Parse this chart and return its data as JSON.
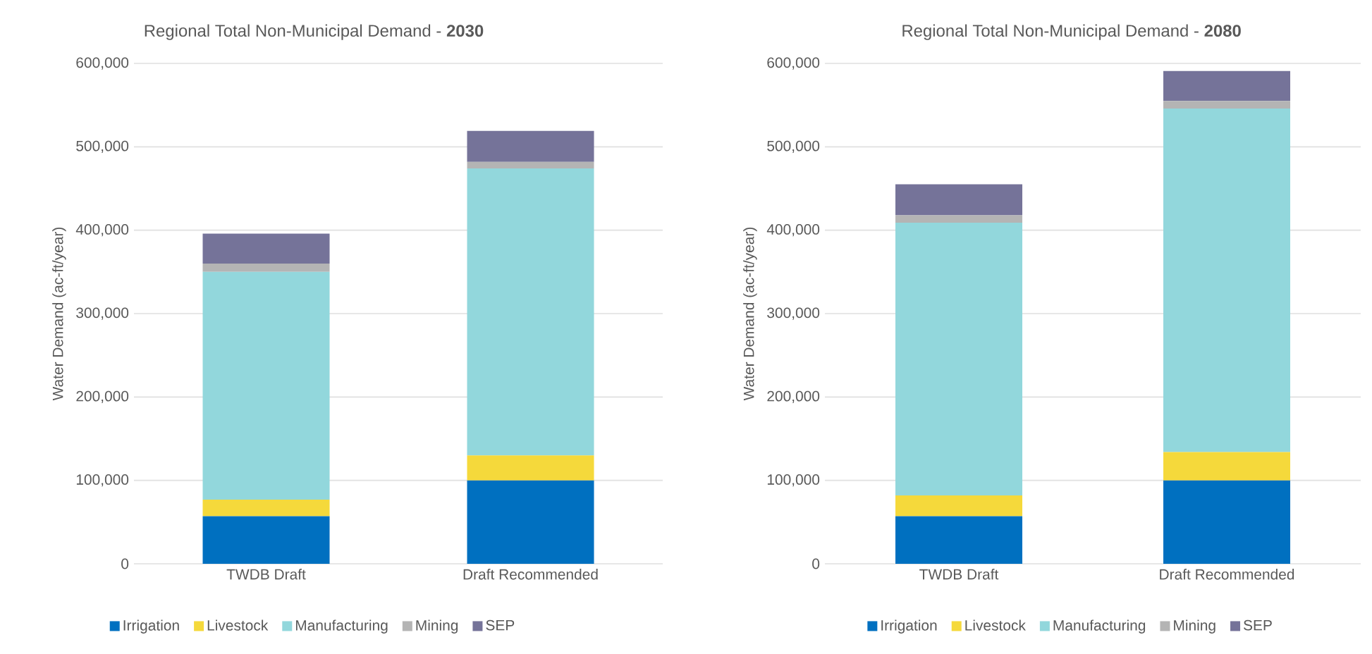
{
  "chart_data": [
    {
      "type": "bar",
      "title": "Regional Total Non-Municipal Demand - **2030**",
      "ylabel": "Water Demand (ac-ft/year)",
      "categories": [
        "TWDB Draft",
        "Draft Recommended"
      ],
      "stacked": true,
      "grid": "y",
      "legend": "bottom",
      "ylim": [
        0,
        600000
      ],
      "yticks": [
        0,
        {
          "value": 100000,
          "label": "100,000"
        },
        {
          "value": 200000,
          "label": "200,000"
        },
        {
          "value": 300000,
          "label": "300,000"
        },
        {
          "value": 400000,
          "label": "400,000"
        },
        {
          "value": 500000,
          "label": "500,000"
        },
        {
          "value": 600000,
          "label": "600,000"
        }
      ],
      "series": [
        {
          "name": "Irrigation",
          "color": "#0070c0",
          "values": [
            57000,
            100000
          ]
        },
        {
          "name": "Livestock",
          "color": "#f5d93b",
          "values": [
            20000,
            30000
          ]
        },
        {
          "name": "Manufacturing",
          "color": "#92d7dc",
          "values": [
            273000,
            344000
          ]
        },
        {
          "name": "Mining",
          "color": "#b4b4b4",
          "values": [
            10000,
            8000
          ]
        },
        {
          "name": "SEP",
          "color": "#757399",
          "values": [
            36000,
            37000
          ]
        }
      ]
    },
    {
      "type": "bar",
      "title": "Regional Total Non-Municipal Demand - **2080**",
      "ylabel": "Water Demand (ac-ft/year)",
      "categories": [
        "TWDB Draft",
        "Draft Recommended"
      ],
      "stacked": true,
      "grid": "y",
      "legend": "bottom",
      "ylim": [
        0,
        600000
      ],
      "yticks": [
        0,
        {
          "value": 100000,
          "label": "100,000"
        },
        {
          "value": 200000,
          "label": "200,000"
        },
        {
          "value": 300000,
          "label": "300,000"
        },
        {
          "value": 400000,
          "label": "400,000"
        },
        {
          "value": 500000,
          "label": "500,000"
        },
        {
          "value": 600000,
          "label": "600,000"
        }
      ],
      "series": [
        {
          "name": "Irrigation",
          "color": "#0070c0",
          "values": [
            57000,
            100000
          ]
        },
        {
          "name": "Livestock",
          "color": "#f5d93b",
          "values": [
            25000,
            34000
          ]
        },
        {
          "name": "Manufacturing",
          "color": "#92d7dc",
          "values": [
            327000,
            412000
          ]
        },
        {
          "name": "Mining",
          "color": "#b4b4b4",
          "values": [
            9000,
            9000
          ]
        },
        {
          "name": "SEP",
          "color": "#757399",
          "values": [
            37000,
            36000
          ]
        }
      ]
    }
  ]
}
